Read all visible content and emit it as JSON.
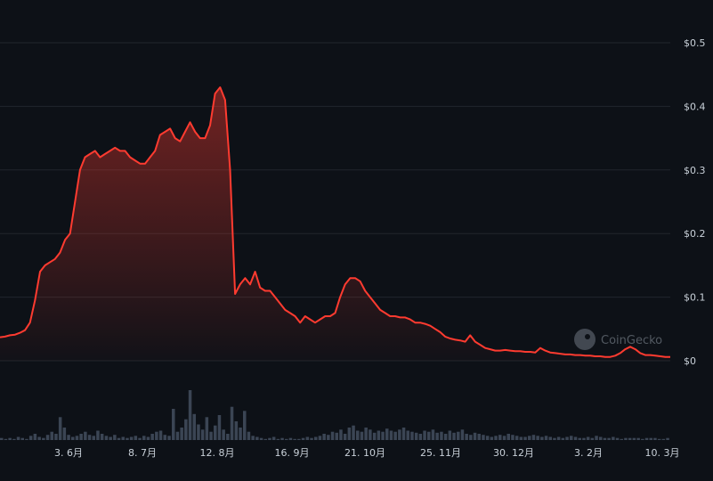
{
  "chart_data": {
    "type": "area",
    "y_ticks": [
      "$0",
      "$0.1",
      "$0.2",
      "$0.3",
      "$0.4",
      "$0.5"
    ],
    "y_tick_values": [
      0,
      0.1,
      0.2,
      0.3,
      0.4,
      0.5
    ],
    "ylim": [
      0,
      0.5
    ],
    "x_ticks": [
      "3. 6月",
      "8. 7月",
      "12. 8月",
      "16. 9月",
      "21. 10月",
      "25. 11月",
      "30. 12月",
      "3. 2月",
      "10. 3月"
    ],
    "grid": true,
    "series": [
      {
        "values": [
          0.037,
          0.038,
          0.04,
          0.041,
          0.044,
          0.048,
          0.06,
          0.095,
          0.14,
          0.15,
          0.155,
          0.16,
          0.17,
          0.19,
          0.2,
          0.25,
          0.3,
          0.32,
          0.325,
          0.33,
          0.32,
          0.325,
          0.33,
          0.335,
          0.33,
          0.33,
          0.32,
          0.315,
          0.31,
          0.31,
          0.32,
          0.33,
          0.355,
          0.36,
          0.365,
          0.35,
          0.345,
          0.36,
          0.375,
          0.36,
          0.35,
          0.35,
          0.37,
          0.42,
          0.43,
          0.41,
          0.3,
          0.105,
          0.12,
          0.13,
          0.12,
          0.14,
          0.115,
          0.11,
          0.11,
          0.1,
          0.09,
          0.08,
          0.075,
          0.07,
          0.06,
          0.07,
          0.065,
          0.06,
          0.065,
          0.07,
          0.07,
          0.075,
          0.1,
          0.12,
          0.13,
          0.13,
          0.125,
          0.11,
          0.1,
          0.09,
          0.08,
          0.075,
          0.07,
          0.07,
          0.068,
          0.068,
          0.065,
          0.06,
          0.06,
          0.058,
          0.055,
          0.05,
          0.045,
          0.038,
          0.035,
          0.033,
          0.032,
          0.03,
          0.04,
          0.03,
          0.025,
          0.02,
          0.018,
          0.016,
          0.016,
          0.017,
          0.016,
          0.015,
          0.015,
          0.014,
          0.014,
          0.013,
          0.02,
          0.016,
          0.013,
          0.012,
          0.011,
          0.01,
          0.01,
          0.009,
          0.009,
          0.008,
          0.008,
          0.007,
          0.007,
          0.006,
          0.006,
          0.008,
          0.012,
          0.018,
          0.022,
          0.018,
          0.012,
          0.009,
          0.009,
          0.008,
          0.007,
          0.006,
          0.006
        ]
      }
    ],
    "volume": [
      2,
      1,
      2,
      1,
      3,
      2,
      1,
      4,
      6,
      3,
      2,
      5,
      8,
      6,
      22,
      12,
      5,
      3,
      4,
      6,
      8,
      5,
      4,
      9,
      6,
      4,
      3,
      5,
      2,
      3,
      2,
      3,
      4,
      2,
      4,
      3,
      6,
      8,
      9,
      5,
      4,
      30,
      8,
      12,
      20,
      48,
      25,
      15,
      10,
      22,
      8,
      14,
      24,
      10,
      6,
      32,
      18,
      12,
      28,
      8,
      4,
      3,
      2,
      1,
      2,
      3,
      1,
      2,
      1,
      2,
      1,
      1,
      2,
      3,
      2,
      3,
      4,
      6,
      5,
      8,
      7,
      10,
      6,
      12,
      14,
      9,
      8,
      12,
      10,
      7,
      9,
      8,
      11,
      9,
      8,
      10,
      12,
      9,
      8,
      7,
      6,
      9,
      8,
      10,
      7,
      8,
      6,
      9,
      7,
      8,
      10,
      6,
      5,
      7,
      6,
      5,
      4,
      3,
      4,
      5,
      4,
      6,
      5,
      4,
      3,
      3,
      4,
      5,
      4,
      3,
      4,
      3,
      2,
      3,
      2,
      3,
      4,
      3,
      2,
      2,
      3,
      2,
      4,
      3,
      2,
      2,
      3,
      2,
      1,
      2,
      2,
      2,
      2,
      1,
      2,
      2,
      2,
      1,
      1,
      2
    ],
    "colors": {
      "line": "#ff3b30",
      "background": "#0d1117",
      "grid": "#21262d",
      "volume": "#3b4554"
    },
    "watermark": "CoinGecko"
  }
}
